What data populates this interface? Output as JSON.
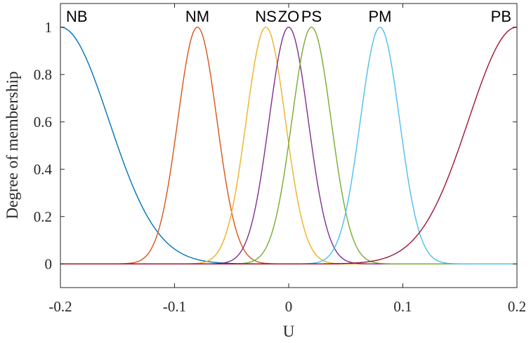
{
  "chart_data": {
    "type": "line",
    "title": "",
    "xlabel": "U",
    "ylabel": "Degree of membership",
    "xlim": [
      -0.2,
      0.2
    ],
    "ylim": [
      -0.1,
      1.1
    ],
    "xticks": [
      -0.2,
      -0.1,
      0,
      0.1,
      0.2
    ],
    "xtick_labels": [
      "-0.2",
      "-0.1",
      "0",
      "0.1",
      "0.2"
    ],
    "yticks": [
      0,
      0.2,
      0.4,
      0.6,
      0.8,
      1
    ],
    "ytick_labels": [
      "0",
      "0.2",
      "0.4",
      "0.6",
      "0.8",
      "1"
    ],
    "grid": false,
    "membership_function": "gaussian",
    "series": [
      {
        "name": "NB",
        "center": -0.2,
        "sigma": 0.0425,
        "color": "#0072BD"
      },
      {
        "name": "NM",
        "center": -0.08,
        "sigma": 0.0172,
        "color": "#D95319"
      },
      {
        "name": "NS",
        "center": -0.02,
        "sigma": 0.0172,
        "color": "#EDB120"
      },
      {
        "name": "ZO",
        "center": 0.0,
        "sigma": 0.0172,
        "color": "#7E2F8E"
      },
      {
        "name": "PS",
        "center": 0.02,
        "sigma": 0.0172,
        "color": "#77AC30"
      },
      {
        "name": "PM",
        "center": 0.08,
        "sigma": 0.0172,
        "color": "#4DBEEE"
      },
      {
        "name": "PB",
        "center": 0.2,
        "sigma": 0.0425,
        "color": "#A2142F"
      }
    ]
  }
}
